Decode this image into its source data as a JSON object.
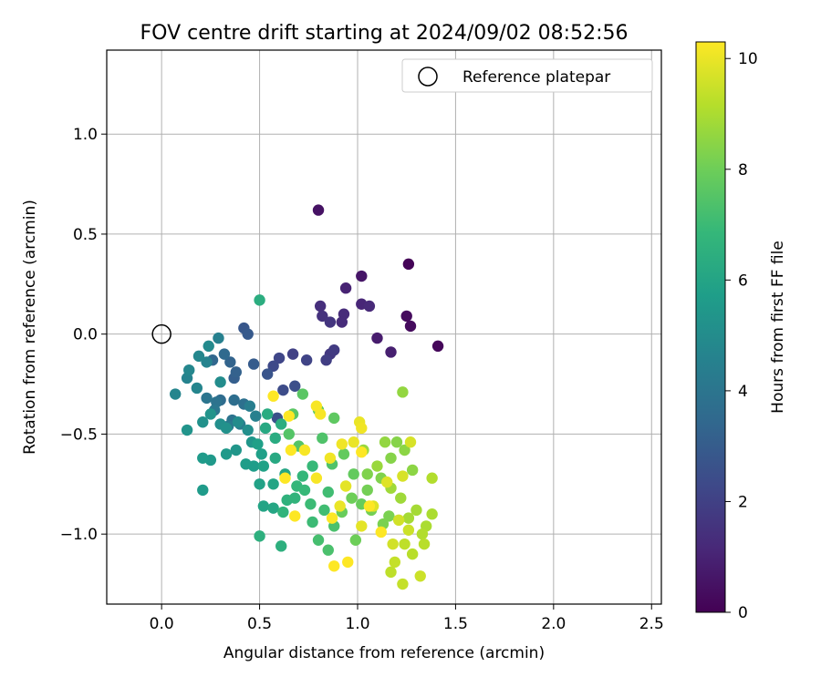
{
  "chart_data": {
    "type": "scatter",
    "title": "FOV centre drift starting at 2024/09/02 08:52:56",
    "xlabel": "Angular distance from reference (arcmin)",
    "ylabel": "Rotation from reference (arcmin)",
    "xlim": [
      -0.28,
      2.55
    ],
    "ylim": [
      -1.35,
      1.42
    ],
    "xticks": [
      0.0,
      0.5,
      1.0,
      1.5,
      2.0,
      2.5
    ],
    "xtick_labels": [
      "0.0",
      "0.5",
      "1.0",
      "1.5",
      "2.0",
      "2.5"
    ],
    "yticks": [
      -1.0,
      -0.5,
      0.0,
      0.5,
      1.0
    ],
    "ytick_labels": [
      "−1.0",
      "−0.5",
      "0.0",
      "0.5",
      "1.0"
    ],
    "grid": true,
    "legend": {
      "placement": "top-right",
      "label": "Reference platepar"
    },
    "reference": {
      "x": 0.0,
      "y": 0.0
    },
    "colorbar": {
      "label": "Hours from first FF file",
      "colormap": "viridis",
      "range": [
        0,
        10.3
      ],
      "ticks": [
        0,
        2,
        4,
        6,
        8,
        10
      ],
      "tick_labels": [
        "0",
        "2",
        "4",
        "6",
        "8",
        "10"
      ],
      "colors": [
        "#440154",
        "#482878",
        "#3e4989",
        "#31688e",
        "#26828e",
        "#1f9e89",
        "#35b779",
        "#6ece58",
        "#b5de2b",
        "#fde725"
      ]
    },
    "points": [
      [
        1.26,
        0.35,
        0.1
      ],
      [
        1.41,
        -0.06,
        0.2
      ],
      [
        1.25,
        0.09,
        0.3
      ],
      [
        1.27,
        0.04,
        0.3
      ],
      [
        0.8,
        0.62,
        0.5
      ],
      [
        1.02,
        0.29,
        0.6
      ],
      [
        1.1,
        -0.02,
        0.8
      ],
      [
        1.17,
        -0.09,
        0.9
      ],
      [
        0.94,
        0.23,
        1.0
      ],
      [
        1.02,
        0.15,
        1.1
      ],
      [
        1.06,
        0.14,
        1.2
      ],
      [
        0.93,
        0.1,
        1.3
      ],
      [
        0.92,
        0.06,
        1.3
      ],
      [
        0.81,
        0.14,
        1.4
      ],
      [
        0.82,
        0.09,
        1.5
      ],
      [
        0.86,
        0.06,
        1.6
      ],
      [
        0.86,
        -0.1,
        1.7
      ],
      [
        0.88,
        -0.08,
        1.8
      ],
      [
        0.84,
        -0.13,
        1.9
      ],
      [
        0.67,
        -0.1,
        2.0
      ],
      [
        0.74,
        -0.13,
        2.1
      ],
      [
        0.6,
        -0.12,
        2.2
      ],
      [
        0.57,
        -0.16,
        2.3
      ],
      [
        0.62,
        -0.28,
        2.4
      ],
      [
        0.68,
        -0.26,
        2.5
      ],
      [
        0.59,
        -0.42,
        2.6
      ],
      [
        0.54,
        -0.2,
        2.7
      ],
      [
        0.42,
        0.03,
        2.8
      ],
      [
        0.44,
        0.0,
        2.9
      ],
      [
        0.47,
        -0.15,
        3.0
      ],
      [
        0.37,
        -0.22,
        3.1
      ],
      [
        0.38,
        -0.19,
        3.2
      ],
      [
        0.35,
        -0.14,
        3.3
      ],
      [
        0.26,
        -0.13,
        3.4
      ],
      [
        0.32,
        -0.1,
        3.5
      ],
      [
        0.3,
        -0.33,
        3.6
      ],
      [
        0.37,
        -0.33,
        3.7
      ],
      [
        0.42,
        -0.35,
        3.8
      ],
      [
        0.36,
        -0.43,
        3.9
      ],
      [
        0.28,
        -0.34,
        3.9
      ],
      [
        0.23,
        -0.32,
        4.0
      ],
      [
        0.27,
        -0.38,
        4.1
      ],
      [
        0.34,
        -0.46,
        4.2
      ],
      [
        0.4,
        -0.45,
        4.3
      ],
      [
        0.45,
        -0.36,
        4.4
      ],
      [
        0.48,
        -0.41,
        4.5
      ],
      [
        0.29,
        -0.02,
        4.5
      ],
      [
        0.23,
        -0.14,
        4.6
      ],
      [
        0.13,
        -0.22,
        4.6
      ],
      [
        0.18,
        -0.27,
        4.7
      ],
      [
        0.07,
        -0.3,
        4.7
      ],
      [
        0.14,
        -0.18,
        4.8
      ],
      [
        0.19,
        -0.11,
        4.8
      ],
      [
        0.24,
        -0.06,
        4.9
      ],
      [
        0.3,
        -0.24,
        5.0
      ],
      [
        0.39,
        -0.44,
        5.0
      ],
      [
        0.44,
        -0.48,
        5.1
      ],
      [
        0.3,
        -0.45,
        5.1
      ],
      [
        0.33,
        -0.47,
        5.2
      ],
      [
        0.21,
        -0.44,
        5.2
      ],
      [
        0.25,
        -0.4,
        5.3
      ],
      [
        0.13,
        -0.48,
        5.3
      ],
      [
        0.38,
        -0.58,
        5.4
      ],
      [
        0.46,
        -0.54,
        5.4
      ],
      [
        0.33,
        -0.6,
        5.5
      ],
      [
        0.25,
        -0.63,
        5.5
      ],
      [
        0.21,
        -0.62,
        5.6
      ],
      [
        0.21,
        -0.78,
        5.6
      ],
      [
        0.43,
        -0.65,
        5.7
      ],
      [
        0.47,
        -0.66,
        5.7
      ],
      [
        0.49,
        -0.55,
        5.8
      ],
      [
        0.51,
        -0.6,
        5.8
      ],
      [
        0.52,
        -0.66,
        5.9
      ],
      [
        0.5,
        -0.75,
        5.9
      ],
      [
        0.52,
        -0.86,
        6.0
      ],
      [
        0.57,
        -0.75,
        6.0
      ],
      [
        0.63,
        -0.7,
        6.1
      ],
      [
        0.57,
        -0.87,
        6.1
      ],
      [
        0.58,
        -0.62,
        6.2
      ],
      [
        0.53,
        -0.47,
        6.2
      ],
      [
        0.58,
        -0.52,
        6.3
      ],
      [
        0.54,
        -0.4,
        6.3
      ],
      [
        0.61,
        -0.45,
        6.4
      ],
      [
        0.5,
        0.17,
        6.4
      ],
      [
        0.5,
        -1.01,
        6.5
      ],
      [
        0.61,
        -1.06,
        6.5
      ],
      [
        0.64,
        -0.83,
        6.6
      ],
      [
        0.62,
        -0.89,
        6.7
      ],
      [
        0.68,
        -0.82,
        6.7
      ],
      [
        0.72,
        -0.71,
        6.8
      ],
      [
        0.69,
        -0.76,
        6.8
      ],
      [
        0.77,
        -0.66,
        6.9
      ],
      [
        0.73,
        -0.78,
        6.9
      ],
      [
        0.76,
        -0.85,
        7.0
      ],
      [
        0.77,
        -0.94,
        7.0
      ],
      [
        0.83,
        -0.88,
        7.1
      ],
      [
        0.85,
        -0.79,
        7.1
      ],
      [
        0.8,
        -1.03,
        7.2
      ],
      [
        0.85,
        -1.08,
        7.3
      ],
      [
        0.88,
        -0.96,
        7.3
      ],
      [
        0.87,
        -0.65,
        7.4
      ],
      [
        0.82,
        -0.52,
        7.4
      ],
      [
        0.7,
        -0.56,
        7.5
      ],
      [
        0.65,
        -0.5,
        7.5
      ],
      [
        0.72,
        -0.3,
        7.6
      ],
      [
        0.67,
        -0.4,
        7.6
      ],
      [
        0.8,
        -0.38,
        7.7
      ],
      [
        0.88,
        -0.42,
        7.7
      ],
      [
        0.93,
        -0.6,
        7.8
      ],
      [
        0.98,
        -0.7,
        7.8
      ],
      [
        1.02,
        -0.85,
        7.9
      ],
      [
        0.92,
        -0.89,
        7.9
      ],
      [
        0.99,
        -1.03,
        8.0
      ],
      [
        0.97,
        -0.82,
        8.0
      ],
      [
        1.05,
        -0.78,
        8.1
      ],
      [
        1.07,
        -0.88,
        8.1
      ],
      [
        1.13,
        -0.95,
        8.2
      ],
      [
        1.16,
        -0.91,
        8.2
      ],
      [
        1.12,
        -0.72,
        8.3
      ],
      [
        1.05,
        -0.7,
        8.3
      ],
      [
        1.17,
        -0.62,
        8.4
      ],
      [
        1.2,
        -0.54,
        8.4
      ],
      [
        1.24,
        -0.58,
        8.5
      ],
      [
        1.28,
        -0.68,
        8.5
      ],
      [
        1.23,
        -0.29,
        8.6
      ],
      [
        1.14,
        -0.54,
        8.6
      ],
      [
        1.03,
        -0.58,
        8.7
      ],
      [
        1.1,
        -0.66,
        8.7
      ],
      [
        1.17,
        -0.77,
        8.8
      ],
      [
        1.22,
        -0.82,
        8.8
      ],
      [
        1.26,
        -0.92,
        8.9
      ],
      [
        1.3,
        -0.88,
        8.9
      ],
      [
        1.35,
        -0.96,
        9.0
      ],
      [
        1.38,
        -0.9,
        9.0
      ],
      [
        1.38,
        -0.72,
        9.1
      ],
      [
        1.33,
        -1.0,
        9.1
      ],
      [
        1.34,
        -1.05,
        9.2
      ],
      [
        1.28,
        -1.1,
        9.2
      ],
      [
        1.24,
        -1.05,
        9.3
      ],
      [
        1.17,
        -1.19,
        9.3
      ],
      [
        1.19,
        -1.14,
        9.4
      ],
      [
        1.23,
        -1.25,
        9.4
      ],
      [
        1.32,
        -1.21,
        9.5
      ],
      [
        1.26,
        -0.98,
        9.5
      ],
      [
        1.21,
        -0.93,
        9.6
      ],
      [
        1.18,
        -1.05,
        9.6
      ],
      [
        1.27,
        -0.54,
        9.7
      ],
      [
        1.23,
        -0.71,
        9.7
      ],
      [
        1.15,
        -0.74,
        9.8
      ],
      [
        1.08,
        -0.86,
        9.8
      ],
      [
        1.02,
        -0.96,
        9.9
      ],
      [
        0.94,
        -0.76,
        9.9
      ],
      [
        0.91,
        -0.86,
        10.0
      ],
      [
        0.98,
        -0.54,
        10.0
      ],
      [
        1.01,
        -0.44,
        10.0
      ],
      [
        1.02,
        -0.47,
        10.1
      ],
      [
        0.92,
        -0.55,
        10.1
      ],
      [
        0.86,
        -0.62,
        10.1
      ],
      [
        0.79,
        -0.72,
        10.2
      ],
      [
        0.79,
        -0.36,
        10.2
      ],
      [
        0.81,
        -0.4,
        10.2
      ],
      [
        0.73,
        -0.58,
        10.2
      ],
      [
        0.66,
        -0.58,
        10.3
      ],
      [
        0.63,
        -0.72,
        10.3
      ],
      [
        0.65,
        -0.41,
        10.3
      ],
      [
        0.57,
        -0.31,
        10.3
      ],
      [
        0.68,
        -0.91,
        10.3
      ],
      [
        0.87,
        -0.92,
        10.3
      ],
      [
        0.88,
        -1.16,
        10.3
      ],
      [
        0.95,
        -1.14,
        10.3
      ],
      [
        1.02,
        -0.59,
        10.3
      ],
      [
        1.06,
        -0.86,
        10.3
      ],
      [
        1.12,
        -0.99,
        10.3
      ]
    ]
  }
}
